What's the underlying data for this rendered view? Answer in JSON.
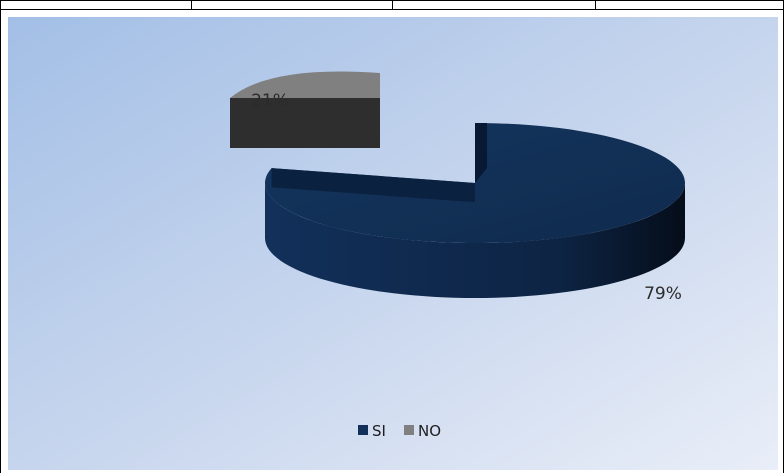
{
  "chart_data": {
    "type": "pie",
    "style": "3d-exploded",
    "categories": [
      "SI",
      "NO"
    ],
    "values": [
      79,
      21
    ],
    "data_labels": [
      "79%",
      "21%"
    ],
    "colors": [
      "#12305a",
      "#808080"
    ],
    "legend_position": "bottom",
    "title": ""
  }
}
